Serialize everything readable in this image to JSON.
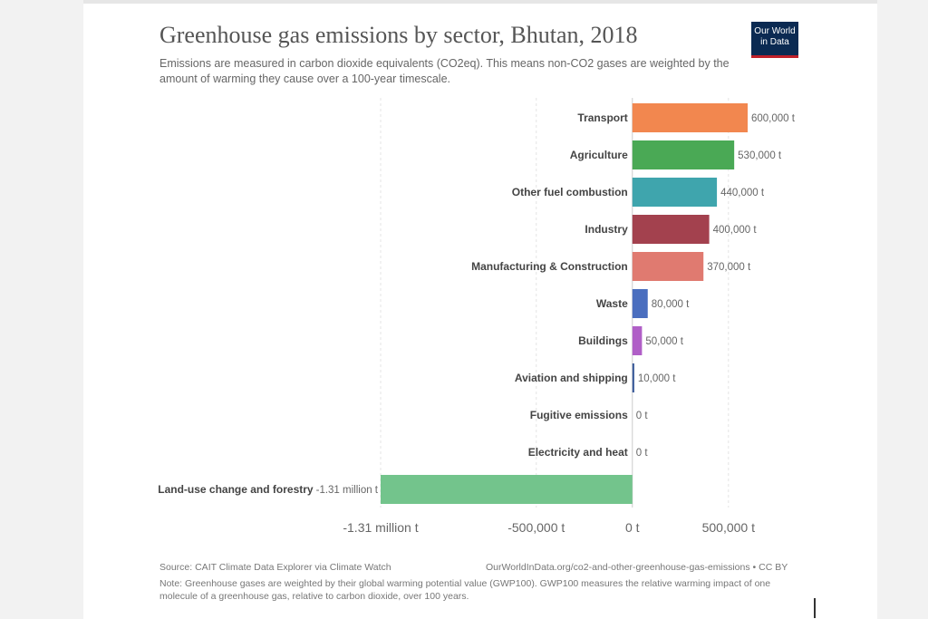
{
  "header": {
    "title": "Greenhouse gas emissions by sector, Bhutan, 2018",
    "subtitle": "Emissions are measured in carbon dioxide equivalents (CO2eq). This means non-CO2 gases are weighted by the amount of warming they cause over a 100-year timescale.",
    "logo_line1": "Our World",
    "logo_line2": "in Data"
  },
  "chart_data": {
    "type": "bar",
    "orientation": "horizontal",
    "title": "Greenhouse gas emissions by sector, Bhutan, 2018",
    "unit": "t CO2eq",
    "categories": [
      "Transport",
      "Agriculture",
      "Other fuel combustion",
      "Industry",
      "Manufacturing & Construction",
      "Waste",
      "Buildings",
      "Aviation and shipping",
      "Fugitive emissions",
      "Electricity and heat",
      "Land-use change and forestry"
    ],
    "values": [
      600000,
      530000,
      440000,
      400000,
      370000,
      80000,
      50000,
      10000,
      0,
      0,
      -1310000
    ],
    "value_labels": [
      "600,000 t",
      "530,000 t",
      "440,000 t",
      "400,000 t",
      "370,000 t",
      "80,000 t",
      "50,000 t",
      "10,000 t",
      "0 t",
      "0 t",
      "-1.31 million t"
    ],
    "colors": [
      "#f2874f",
      "#4aa955",
      "#3fa5ad",
      "#a3414e",
      "#e07a70",
      "#4a6ebf",
      "#b05fc7",
      "#3a5a9a",
      "#999999",
      "#999999",
      "#73c48c"
    ],
    "xlim": [
      -1310000,
      650000
    ],
    "x_ticks": [
      -1310000,
      -500000,
      0,
      500000
    ],
    "x_tick_labels": [
      "-1.31 million t",
      "-500,000 t",
      "0 t",
      "500,000 t"
    ],
    "grid": true
  },
  "footer": {
    "source": "Source: CAIT Climate Data Explorer via Climate Watch",
    "url": "OurWorldInData.org/co2-and-other-greenhouse-gas-emissions • CC BY",
    "note": "Note: Greenhouse gases are weighted by their global warming potential value (GWP100). GWP100 measures the relative warming impact of one molecule of a greenhouse gas, relative to carbon dioxide, over 100 years."
  }
}
